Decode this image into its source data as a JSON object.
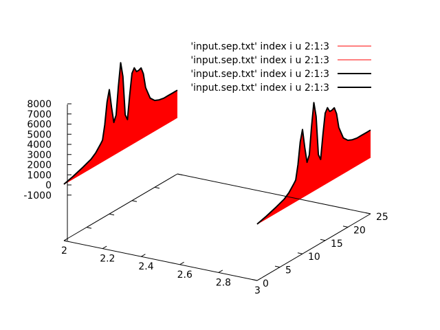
{
  "chart_data": {
    "type": "line",
    "variant": "3d-fence",
    "title": "",
    "xlabel": "",
    "ylabel": "",
    "zlabel": "",
    "xlim": [
      2,
      3
    ],
    "ylim": [
      0,
      25
    ],
    "zlim": [
      -1000,
      8000
    ],
    "x_ticks": [
      "2",
      "2.2",
      "2.4",
      "2.6",
      "2.8",
      "3"
    ],
    "y_ticks": [
      "0",
      "5",
      "10",
      "15",
      "20",
      "25"
    ],
    "z_ticks": [
      "8000",
      "7000",
      "6000",
      "5000",
      "4000",
      "3000",
      "2000",
      "1000",
      "0",
      "-1000"
    ],
    "grid": false,
    "legend_position": "top-right",
    "legend": [
      {
        "label": "'input.sep.txt' index i u 2:1:3",
        "color": "#ff0000",
        "style": "thin"
      },
      {
        "label": "'input.sep.txt' index i u 2:1:3",
        "color": "#ff0000",
        "style": "thin"
      },
      {
        "label": "'input.sep.txt' index i u 2:1:3",
        "color": "#000000",
        "style": "thick"
      },
      {
        "label": "'input.sep.txt' index i u 2:1:3",
        "color": "#000000",
        "style": "thick"
      }
    ],
    "series": [
      {
        "x_fixed": 2,
        "fill": "#ff0000",
        "line": "#000000",
        "points": [
          [
            0,
            0
          ],
          [
            2,
            250
          ],
          [
            4,
            550
          ],
          [
            6,
            900
          ],
          [
            7,
            1250
          ],
          [
            8,
            1800
          ],
          [
            8.5,
            2100
          ],
          [
            9,
            3500
          ],
          [
            9.5,
            5600
          ],
          [
            10,
            6700
          ],
          [
            10.5,
            4800
          ],
          [
            11,
            3200
          ],
          [
            11.5,
            3800
          ],
          [
            12,
            6500
          ],
          [
            12.5,
            8700
          ],
          [
            13,
            7200
          ],
          [
            13.5,
            3300
          ],
          [
            14,
            2700
          ],
          [
            14.5,
            5000
          ],
          [
            15,
            7000
          ],
          [
            15.5,
            7400
          ],
          [
            16,
            6900
          ],
          [
            16.5,
            6900
          ],
          [
            17,
            7000
          ],
          [
            17.5,
            6300
          ],
          [
            18,
            4800
          ],
          [
            19,
            3500
          ],
          [
            20,
            3000
          ],
          [
            21,
            2800
          ],
          [
            22,
            2700
          ],
          [
            23,
            2700
          ],
          [
            24,
            2700
          ],
          [
            25,
            2700
          ]
        ]
      },
      {
        "x_fixed": 3,
        "fill": "#ff0000",
        "line": "#000000",
        "points": [
          [
            0,
            0
          ],
          [
            2,
            250
          ],
          [
            4,
            550
          ],
          [
            6,
            900
          ],
          [
            7,
            1250
          ],
          [
            8,
            1800
          ],
          [
            8.5,
            2100
          ],
          [
            9,
            3500
          ],
          [
            9.5,
            5600
          ],
          [
            10,
            6700
          ],
          [
            10.5,
            4800
          ],
          [
            11,
            3200
          ],
          [
            11.5,
            3800
          ],
          [
            12,
            6500
          ],
          [
            12.5,
            8700
          ],
          [
            13,
            7200
          ],
          [
            13.5,
            3300
          ],
          [
            14,
            2700
          ],
          [
            14.5,
            5000
          ],
          [
            15,
            7000
          ],
          [
            15.5,
            7400
          ],
          [
            16,
            6900
          ],
          [
            16.5,
            6900
          ],
          [
            17,
            7000
          ],
          [
            17.5,
            6300
          ],
          [
            18,
            4800
          ],
          [
            19,
            3500
          ],
          [
            20,
            3000
          ],
          [
            21,
            2800
          ],
          [
            22,
            2700
          ],
          [
            23,
            2700
          ],
          [
            24,
            2700
          ],
          [
            25,
            2700
          ]
        ]
      }
    ]
  }
}
